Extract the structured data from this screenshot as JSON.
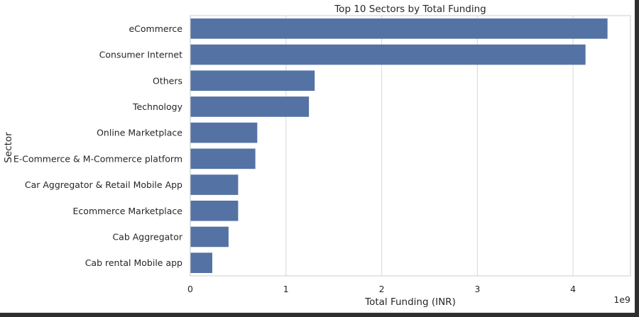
{
  "chart_data": {
    "type": "bar",
    "orientation": "horizontal",
    "title": "Top 10 Sectors by Total Funding",
    "xlabel": "Total Funding (INR)",
    "ylabel": "Sector",
    "x_scale_label": "1e9",
    "x_scale": 1000000000,
    "xlim": [
      0,
      4.6
    ],
    "xticks": [
      "0",
      "1",
      "2",
      "3",
      "4"
    ],
    "grid": "vertical",
    "bar_color": "#5572a4",
    "categories": [
      "eCommerce",
      "Consumer Internet",
      "Others",
      "Technology",
      "Online Marketplace",
      "E-Commerce & M-Commerce platform",
      "Car Aggregator & Retail Mobile App",
      "Ecommerce Marketplace",
      "Cab Aggregator",
      "Cab rental Mobile app"
    ],
    "values": [
      4.36,
      4.13,
      1.3,
      1.24,
      0.7,
      0.68,
      0.5,
      0.5,
      0.4,
      0.23
    ]
  }
}
